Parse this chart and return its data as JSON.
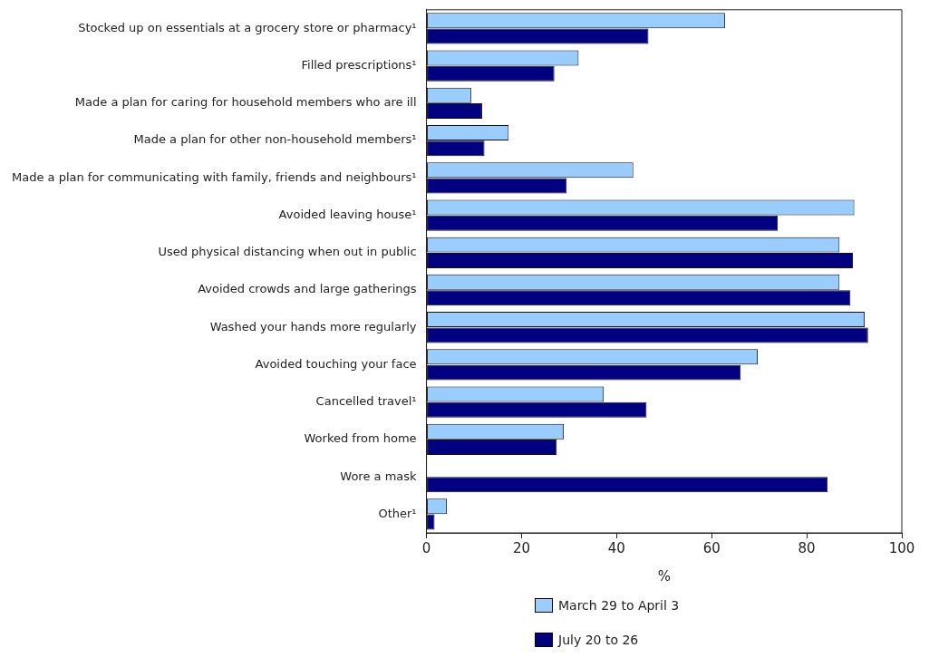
{
  "chart_data": {
    "type": "bar",
    "orientation": "horizontal",
    "xlabel": "%",
    "categories": [
      "Stocked up on essentials at a grocery store or pharmacy¹",
      "Filled prescriptions¹",
      "Made a plan for caring for household members who are ill",
      "Made a plan for other non-household members¹",
      "Made a plan for communicating with family, friends and neighbours¹",
      "Avoided leaving house¹",
      "Used physical distancing when out in public",
      "Avoided crowds and large gatherings",
      "Washed your hands more regularly",
      "Avoided touching your face",
      "Cancelled travel¹",
      "Worked from home",
      "Wore a mask",
      "Other¹"
    ],
    "series": [
      {
        "name": "March 29 to April 3",
        "color": "#99ccff",
        "values": [
          62.8,
          32.0,
          9.4,
          17.3,
          43.5,
          90.0,
          86.9,
          86.9,
          92.2,
          69.7,
          37.3,
          28.9,
          null,
          4.3
        ]
      },
      {
        "name": "July 20 to 26",
        "color": "#000080",
        "values": [
          46.7,
          26.9,
          11.7,
          12.2,
          29.5,
          73.9,
          89.7,
          89.2,
          92.9,
          66.1,
          46.3,
          27.4,
          84.4,
          1.7
        ]
      }
    ],
    "xlim": [
      0,
      100
    ],
    "xticks": [
      0,
      20,
      40,
      60,
      80,
      100
    ],
    "grid": false,
    "legend": "bottom"
  }
}
